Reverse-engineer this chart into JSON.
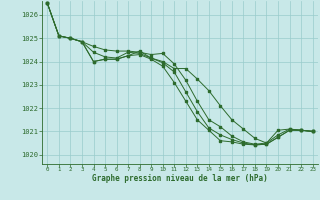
{
  "title": "Graphe pression niveau de la mer (hPa)",
  "background_color": "#c8e8e8",
  "grid_color": "#99cccc",
  "line_color": "#2d6b2d",
  "xlim": [
    -0.5,
    23.5
  ],
  "ylim": [
    1019.6,
    1026.6
  ],
  "yticks": [
    1020,
    1021,
    1022,
    1023,
    1024,
    1025,
    1026
  ],
  "xticks": [
    0,
    1,
    2,
    3,
    4,
    5,
    6,
    7,
    8,
    9,
    10,
    11,
    12,
    13,
    14,
    15,
    16,
    17,
    18,
    19,
    20,
    21,
    22,
    23
  ],
  "series": [
    [
      1026.5,
      1025.1,
      1025.0,
      1024.85,
      1024.65,
      1024.5,
      1024.45,
      1024.45,
      1024.4,
      1024.3,
      1024.35,
      1023.9,
      1023.2,
      1022.3,
      1021.5,
      1021.2,
      1020.8,
      1020.55,
      1020.45,
      1020.5,
      1020.85,
      1021.1,
      1021.05,
      1021.0
    ],
    [
      1026.5,
      1025.1,
      1025.0,
      1024.85,
      1024.4,
      1024.2,
      1024.15,
      1024.4,
      1024.35,
      1024.15,
      1023.95,
      1023.55,
      1022.7,
      1021.85,
      1021.15,
      1020.85,
      1020.65,
      1020.5,
      1020.42,
      1020.45,
      1020.75,
      1021.05,
      1021.05,
      1021.0
    ],
    [
      1026.5,
      1025.1,
      1025.0,
      1024.85,
      1024.0,
      1024.1,
      1024.1,
      1024.25,
      1024.3,
      1024.1,
      1023.8,
      1023.1,
      1022.3,
      1021.5,
      1021.05,
      1020.6,
      1020.55,
      1020.45,
      1020.42,
      1020.45,
      1020.75,
      1021.05,
      1021.05,
      1021.0
    ],
    [
      1026.5,
      1025.1,
      1025.0,
      1024.85,
      1024.0,
      1024.1,
      1024.1,
      1024.25,
      1024.45,
      1024.15,
      1024.0,
      1023.7,
      1023.7,
      1023.25,
      1022.75,
      1022.1,
      1021.5,
      1021.1,
      1020.7,
      1020.5,
      1021.05,
      1021.1,
      1021.05,
      1021.0
    ]
  ]
}
